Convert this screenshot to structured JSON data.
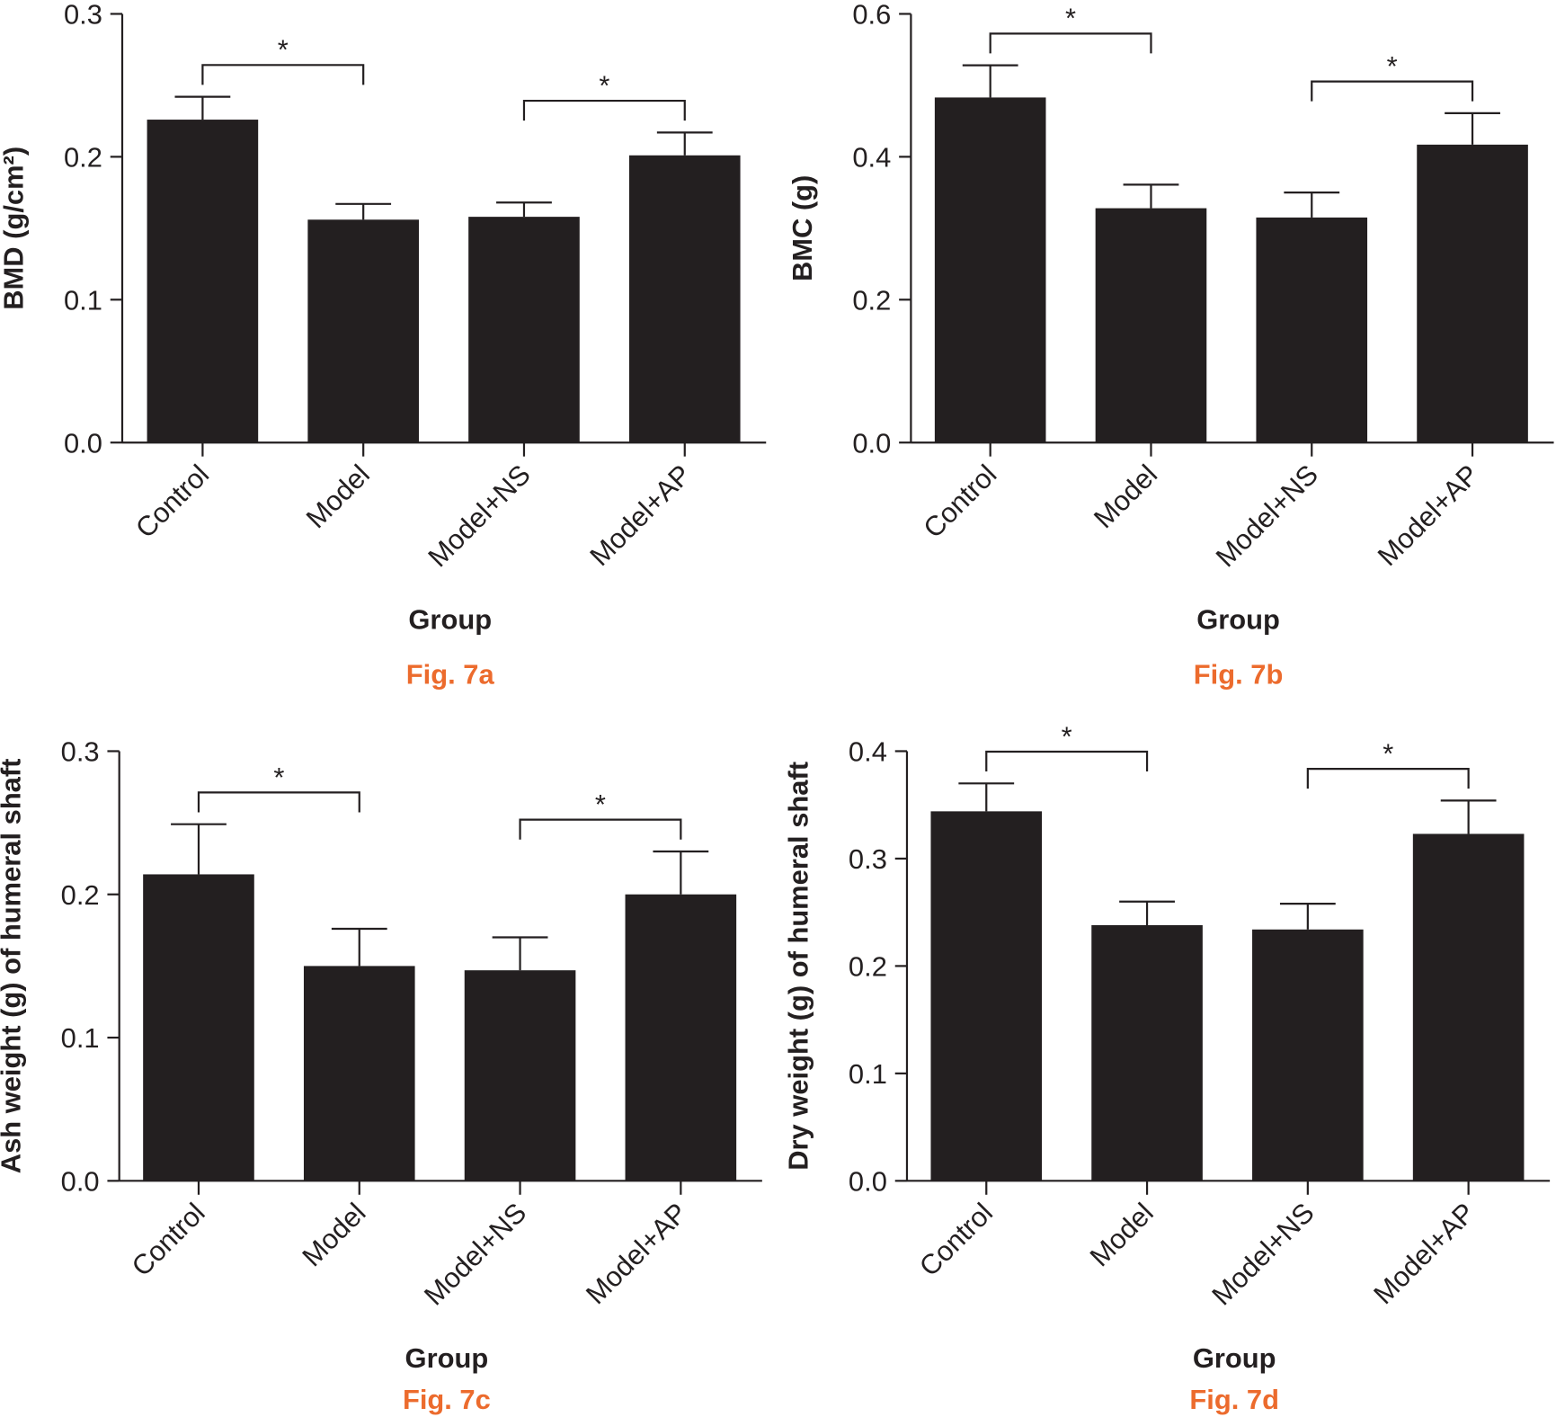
{
  "chart_data": [
    {
      "type": "bar",
      "y_label": "BMD (g/cm²)",
      "x_label": "Group",
      "caption": "Fig. 7a",
      "categories": [
        "Control",
        "Model",
        "Model+NS",
        "Model+AP"
      ],
      "values": [
        0.226,
        0.156,
        0.158,
        0.201
      ],
      "errors": [
        0.016,
        0.011,
        0.01,
        0.016
      ],
      "color": "#231f20",
      "ylim": [
        0,
        0.3
      ],
      "yticks": [
        {
          "value": 0,
          "label": "0.0"
        },
        0.1,
        0.2,
        0.3
      ],
      "significance": [
        {
          "pair": [
            0,
            1
          ],
          "label": "*"
        },
        {
          "pair": [
            2,
            3
          ],
          "label": "*"
        }
      ]
    },
    {
      "type": "bar",
      "y_label": "BMC (g)",
      "x_label": "Group",
      "caption": "Fig. 7b",
      "categories": [
        "Control",
        "Model",
        "Model+NS",
        "Model+AP"
      ],
      "values": [
        0.483,
        0.328,
        0.315,
        0.417
      ],
      "errors": [
        0.045,
        0.033,
        0.035,
        0.044
      ],
      "color": "#231f20",
      "ylim": [
        0,
        0.6
      ],
      "yticks": [
        {
          "value": 0,
          "label": "0.0"
        },
        0.2,
        0.4,
        0.6
      ],
      "significance": [
        {
          "pair": [
            0,
            1
          ],
          "label": "*"
        },
        {
          "pair": [
            2,
            3
          ],
          "label": "*"
        }
      ]
    },
    {
      "type": "bar",
      "y_label": "Ash weight (g) of humeral shaft",
      "x_label": "Group",
      "caption": "Fig. 7c",
      "categories": [
        "Control",
        "Model",
        "Model+NS",
        "Model+AP"
      ],
      "values": [
        0.214,
        0.15,
        0.147,
        0.2
      ],
      "errors": [
        0.035,
        0.026,
        0.023,
        0.03
      ],
      "color": "#231f20",
      "ylim": [
        0,
        0.3
      ],
      "yticks": [
        {
          "value": 0,
          "label": "0.0"
        },
        0.1,
        0.2,
        0.3
      ],
      "significance": [
        {
          "pair": [
            0,
            1
          ],
          "label": "*"
        },
        {
          "pair": [
            2,
            3
          ],
          "label": "*"
        }
      ]
    },
    {
      "type": "bar",
      "y_label": "Dry weight (g) of humeral shaft",
      "x_label": "Group",
      "caption": "Fig. 7d",
      "categories": [
        "Control",
        "Model",
        "Model+NS",
        "Model+AP"
      ],
      "values": [
        0.344,
        0.238,
        0.234,
        0.323
      ],
      "errors": [
        0.026,
        0.022,
        0.024,
        0.031
      ],
      "color": "#231f20",
      "ylim": [
        0,
        0.4
      ],
      "yticks": [
        {
          "value": 0,
          "label": "0.0"
        },
        0.1,
        0.2,
        0.3,
        0.4
      ],
      "significance": [
        {
          "pair": [
            0,
            1
          ],
          "label": "*"
        },
        {
          "pair": [
            2,
            3
          ],
          "label": "*"
        }
      ]
    }
  ]
}
